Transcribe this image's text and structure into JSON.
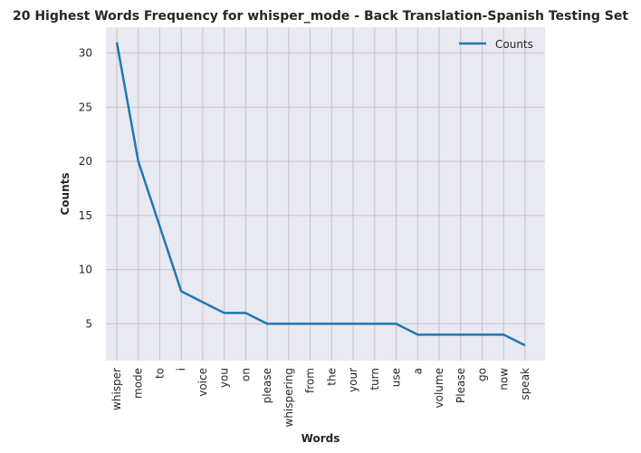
{
  "chart_data": {
    "type": "line",
    "title": "20 Highest Words Frequency for whisper_mode - Back Translation-Spanish Testing Set",
    "xlabel": "Words",
    "ylabel": "Counts",
    "categories": [
      "whisper",
      "mode",
      "to",
      "i",
      "voice",
      "you",
      "on",
      "please",
      "whispering",
      "from",
      "the",
      "your",
      "turn",
      "use",
      "a",
      "volume",
      "Please",
      "go",
      "now",
      "speak"
    ],
    "series": [
      {
        "name": "Counts",
        "values": [
          31,
          20,
          14,
          8,
          7,
          6,
          6,
          5,
          5,
          5,
          5,
          5,
          5,
          5,
          4,
          4,
          4,
          4,
          4,
          3
        ]
      }
    ],
    "yticks": [
      5,
      10,
      15,
      20,
      25,
      30
    ],
    "ylim": [
      1.6,
      32.4
    ],
    "grid": true,
    "legend": "top-right",
    "colors": {
      "line": "#1f77b4",
      "background": "#e9e9f2",
      "grid": "#c4c4c8"
    }
  }
}
